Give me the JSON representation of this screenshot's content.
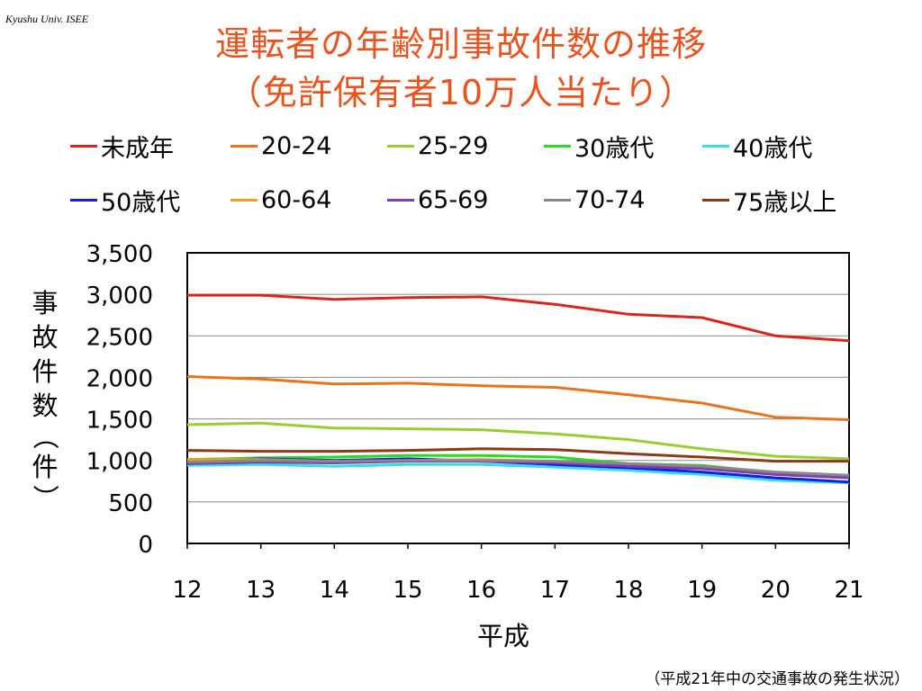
{
  "header": {
    "tag": "Kyushu Univ. ISEE"
  },
  "title": {
    "line1": "運転者の年齢別事故件数の推移",
    "line2": "（免許保有者10万人当たり）"
  },
  "source_note": "（平成21年中の交通事故の発生状況）",
  "colors": {
    "title": "#e8531f",
    "under20": "#d9261c",
    "s20_24": "#e8731f",
    "s25_29": "#9acd32",
    "s30": "#22dd22",
    "s40": "#33e0e8",
    "s50": "#1a1ae0",
    "s60_64": "#f0a020",
    "s65_69": "#7a3fb0",
    "s70_74": "#888888",
    "s75": "#8b3a1a"
  },
  "chart_data": {
    "type": "line",
    "xlabel": "平成",
    "ylabel": "事故件数（件）",
    "ylim": [
      0,
      3500
    ],
    "yticks": [
      0,
      500,
      1000,
      1500,
      2000,
      2500,
      3000,
      3500
    ],
    "ytick_labels": [
      "0",
      "500",
      "1,000",
      "1,500",
      "2,000",
      "2,500",
      "3,000",
      "3,500"
    ],
    "categories": [
      "12",
      "13",
      "14",
      "15",
      "16",
      "17",
      "18",
      "19",
      "20",
      "21"
    ],
    "grid": true,
    "legend_position": "top",
    "series": [
      {
        "name": "未成年",
        "color_key": "under20",
        "values": [
          2990,
          2990,
          2940,
          2960,
          2970,
          2880,
          2760,
          2720,
          2500,
          2440
        ]
      },
      {
        "name": "20-24",
        "color_key": "s20_24",
        "values": [
          2010,
          1980,
          1920,
          1930,
          1900,
          1880,
          1790,
          1690,
          1520,
          1490
        ]
      },
      {
        "name": "25-29",
        "color_key": "s25_29",
        "values": [
          1430,
          1450,
          1390,
          1380,
          1370,
          1320,
          1250,
          1140,
          1050,
          1020
        ]
      },
      {
        "name": "30歳代",
        "color_key": "s30",
        "values": [
          1010,
          1030,
          1040,
          1060,
          1060,
          1040,
          960,
          940,
          850,
          810
        ]
      },
      {
        "name": "40歳代",
        "color_key": "s40",
        "values": [
          940,
          950,
          930,
          950,
          950,
          920,
          880,
          830,
          760,
          730
        ]
      },
      {
        "name": "50歳代",
        "color_key": "s50",
        "values": [
          980,
          1020,
          1000,
          1020,
          990,
          950,
          910,
          860,
          790,
          740
        ]
      },
      {
        "name": "60-64",
        "color_key": "s60_64",
        "values": [
          1010,
          1010,
          990,
          1000,
          1010,
          990,
          950,
          920,
          840,
          800
        ]
      },
      {
        "name": "65-69",
        "color_key": "s65_69",
        "values": [
          960,
          980,
          970,
          990,
          990,
          970,
          930,
          900,
          830,
          790
        ]
      },
      {
        "name": "70-74",
        "color_key": "s70_74",
        "values": [
          980,
          1000,
          990,
          1000,
          1000,
          990,
          960,
          930,
          860,
          820
        ]
      },
      {
        "name": "75歳以上",
        "color_key": "s75",
        "values": [
          1120,
          1110,
          1110,
          1120,
          1140,
          1130,
          1080,
          1040,
          990,
          990
        ]
      }
    ]
  }
}
